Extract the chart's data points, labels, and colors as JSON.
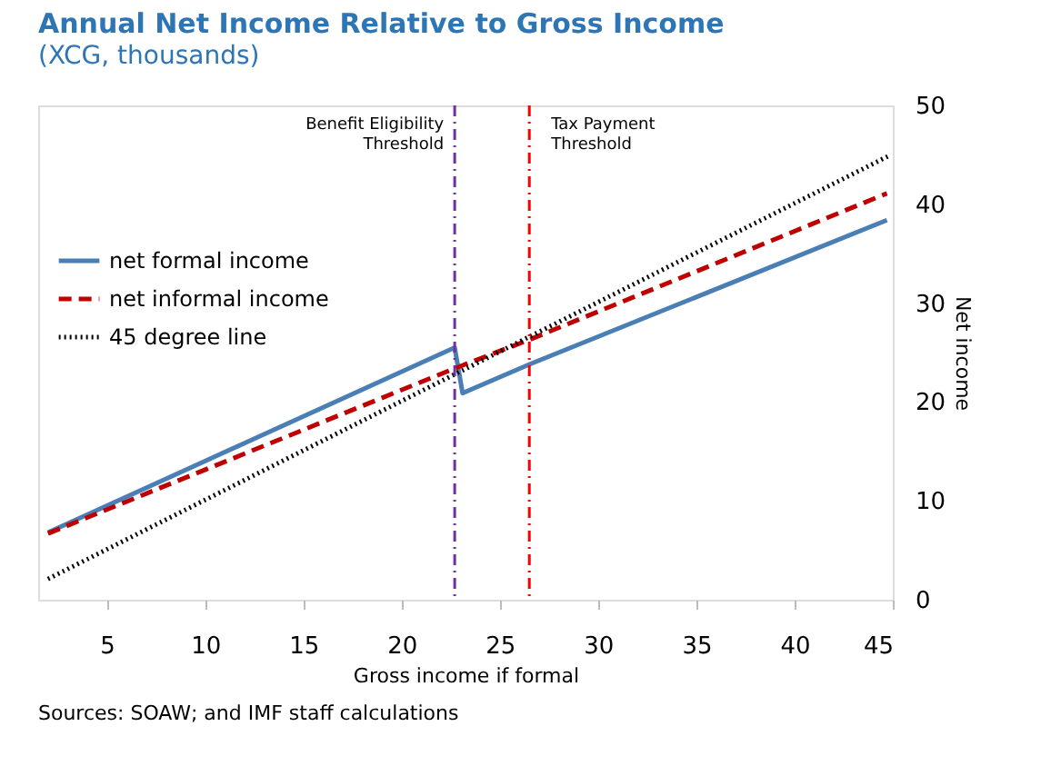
{
  "chart_data": {
    "type": "line",
    "title": "Annual Net Income Relative to Gross Income",
    "subtitle": "(XCG, thousands)",
    "xlabel": "Gross income if formal",
    "ylabel": "Net income",
    "series": [
      {
        "name": "net formal income",
        "color": "#4a7fb5",
        "line_style": "solid",
        "x": [
          2,
          22.7,
          23.1,
          26.5,
          44.7
        ],
        "values": [
          6.8,
          25.5,
          20.9,
          23.8,
          38.4
        ]
      },
      {
        "name": "net informal income",
        "color": "#c00000",
        "line_style": "dashed",
        "x": [
          2,
          22.7,
          26.5,
          44.7
        ],
        "values": [
          6.7,
          23.4,
          26.3,
          41.1
        ]
      },
      {
        "name": "45 degree line",
        "color": "#000000",
        "line_style": "dotted",
        "x": [
          2,
          44.8
        ],
        "values": [
          2.1,
          44.9
        ]
      }
    ],
    "xlim": [
      1.5,
      45
    ],
    "xticks": [
      5,
      10,
      15,
      20,
      25,
      30,
      35,
      40,
      45
    ],
    "ylim": [
      0,
      50
    ],
    "yticks": [
      0,
      10,
      20,
      30,
      40,
      50
    ],
    "ref_lines": [
      {
        "axis": "x",
        "value": 22.7,
        "label": "Benefit Eligibility\nThreshold",
        "color": "#7030a0",
        "line_style": "dashdot"
      },
      {
        "axis": "x",
        "value": 26.5,
        "label": "Tax Payment\nThreshold",
        "color": "#ff0000",
        "line_style": "dashdot"
      }
    ],
    "annotations": [
      "Sources: SOAW; and IMF staff calculations"
    ],
    "grid": false,
    "legend": "left",
    "marker": "none"
  }
}
